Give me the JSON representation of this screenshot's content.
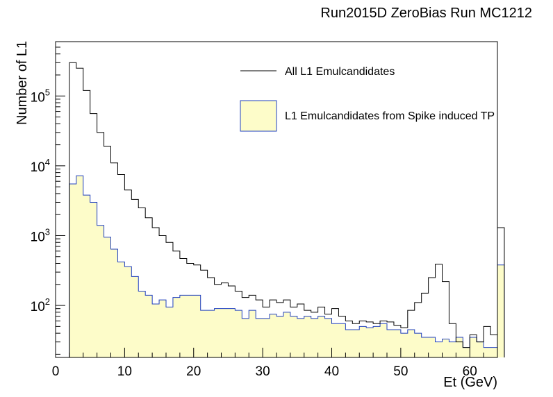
{
  "chart_data": {
    "type": "histogram",
    "title": "Run2015D ZeroBias Run MC1212",
    "xlabel": "Et (GeV)",
    "ylabel": "Number of L1",
    "xlim": [
      0,
      64
    ],
    "ylim": [
      18,
      600000
    ],
    "yscale": "log",
    "grid": false,
    "legend_position": "top-right",
    "x_tick_labels": [
      "0",
      "10",
      "20",
      "30",
      "40",
      "50",
      "60"
    ],
    "y_tick_labels": [
      {
        "base": "10",
        "exp": "2"
      },
      {
        "base": "10",
        "exp": "3"
      },
      {
        "base": "10",
        "exp": "4"
      },
      {
        "base": "10",
        "exp": "5"
      }
    ],
    "bin_edges_start": 2,
    "bin_width": 1,
    "series": [
      {
        "name": "All L1 Emulcandidates",
        "color": "#000000",
        "fill": null,
        "values": [
          300000,
          250000,
          120000,
          56000,
          30000,
          19000,
          11000,
          7500,
          4500,
          3300,
          2500,
          1800,
          1300,
          1000,
          800,
          600,
          470,
          400,
          380,
          320,
          250,
          200,
          210,
          190,
          160,
          130,
          140,
          120,
          95,
          120,
          110,
          120,
          95,
          105,
          85,
          80,
          95,
          75,
          90,
          70,
          60,
          55,
          60,
          58,
          55,
          60,
          58,
          52,
          48,
          85,
          110,
          150,
          250,
          390,
          220,
          55,
          30,
          25,
          38,
          30,
          50,
          38,
          1300
        ]
      },
      {
        "name": "L1 Emulcandidates from Spike induced TP",
        "color": "#1f3fbf",
        "fill": "#fdfcc9",
        "values": [
          5500,
          7200,
          3800,
          3000,
          1400,
          950,
          640,
          420,
          360,
          260,
          160,
          140,
          105,
          120,
          95,
          130,
          140,
          140,
          140,
          85,
          85,
          90,
          90,
          90,
          85,
          65,
          85,
          65,
          65,
          75,
          70,
          80,
          70,
          65,
          70,
          65,
          70,
          65,
          55,
          55,
          45,
          45,
          50,
          48,
          50,
          55,
          45,
          45,
          40,
          45,
          40,
          35,
          35,
          30,
          33,
          30,
          35,
          25,
          35,
          30,
          25,
          25,
          380
        ]
      }
    ]
  }
}
